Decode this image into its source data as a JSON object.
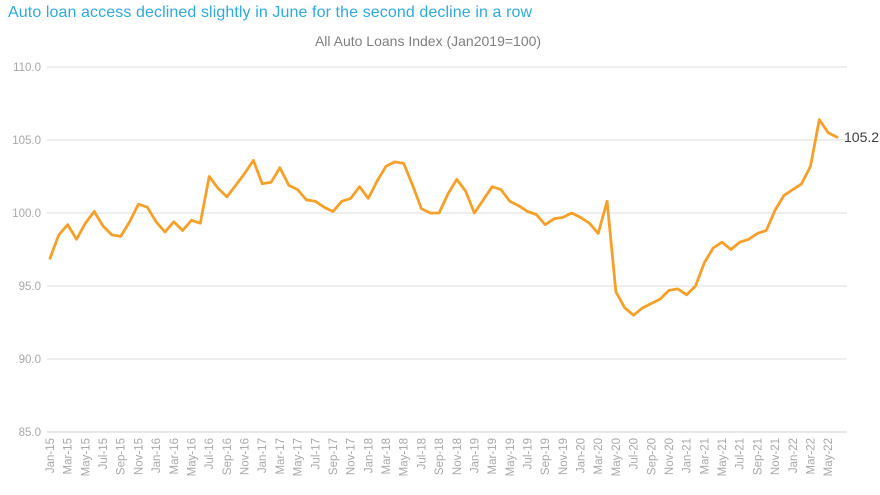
{
  "page": {
    "headline": "Auto loan access declined slightly in June for the second decline in a row"
  },
  "chart_data": {
    "type": "line",
    "title": "All Auto Loans Index (Jan2019=100)",
    "series_name": "All Auto Loans Index",
    "grid": "horizontal-only",
    "legend": "none",
    "ylim": [
      85,
      110
    ],
    "y_ticks": [
      110,
      105,
      100,
      95,
      90,
      85
    ],
    "x_tick_every_months": 2,
    "x_tick_labels": [
      "Jan-15",
      "Mar-15",
      "May-15",
      "Jul-15",
      "Sep-15",
      "Nov-15",
      "Jan-16",
      "Mar-16",
      "May-16",
      "Jul-16",
      "Sep-16",
      "Nov-16",
      "Jan-17",
      "Mar-17",
      "May-17",
      "Jul-17",
      "Sep-17",
      "Nov-17",
      "Jan-18",
      "Mar-18",
      "May-18",
      "Jul-18",
      "Sep-18",
      "Nov-18",
      "Jan-19",
      "Mar-19",
      "May-19",
      "Jul-19",
      "Sep-19",
      "Nov-19",
      "Jan-20",
      "Mar-20",
      "May-20",
      "Jul-20",
      "Sep-20",
      "Nov-20",
      "Jan-21",
      "Mar-21",
      "May-21",
      "Jul-21",
      "Sep-21",
      "Nov-21",
      "Jan-22",
      "Mar-22",
      "May-22"
    ],
    "x_range_monthly": [
      "Jan-15",
      "Jun-22"
    ],
    "monthly_values": [
      96.9,
      98.5,
      99.2,
      98.2,
      99.3,
      100.1,
      99.1,
      98.5,
      98.4,
      99.4,
      100.6,
      100.4,
      99.4,
      98.7,
      99.4,
      98.8,
      99.5,
      99.3,
      102.5,
      101.7,
      101.1,
      101.9,
      102.7,
      103.6,
      102.0,
      102.1,
      103.1,
      101.9,
      101.6,
      100.9,
      100.8,
      100.4,
      100.1,
      100.8,
      101.0,
      101.8,
      101.0,
      102.2,
      103.2,
      103.5,
      103.4,
      101.9,
      100.3,
      100.0,
      100.0,
      101.3,
      102.3,
      101.5,
      100.0,
      100.9,
      101.8,
      101.6,
      100.8,
      100.5,
      100.1,
      99.9,
      99.2,
      99.6,
      99.7,
      100.0,
      99.7,
      99.3,
      98.6,
      100.8,
      94.6,
      93.5,
      93.0,
      93.5,
      93.8,
      94.1,
      94.7,
      94.8,
      94.4,
      95.0,
      96.6,
      97.6,
      98.0,
      97.5,
      98.0,
      98.2,
      98.6,
      98.8,
      100.2,
      101.2,
      101.6,
      102.0,
      103.2,
      106.4,
      105.5,
      105.2
    ],
    "end_label": "105.2",
    "colors": {
      "line": "#F5A028",
      "headline": "#2FA9DF",
      "subtitle": "#7F7F7F",
      "axis_labels": "#A8A8A8",
      "gridline": "#DCDCDC",
      "bottom_gridline": "#D0D0D0",
      "end_label": "#3F3F3F"
    }
  }
}
